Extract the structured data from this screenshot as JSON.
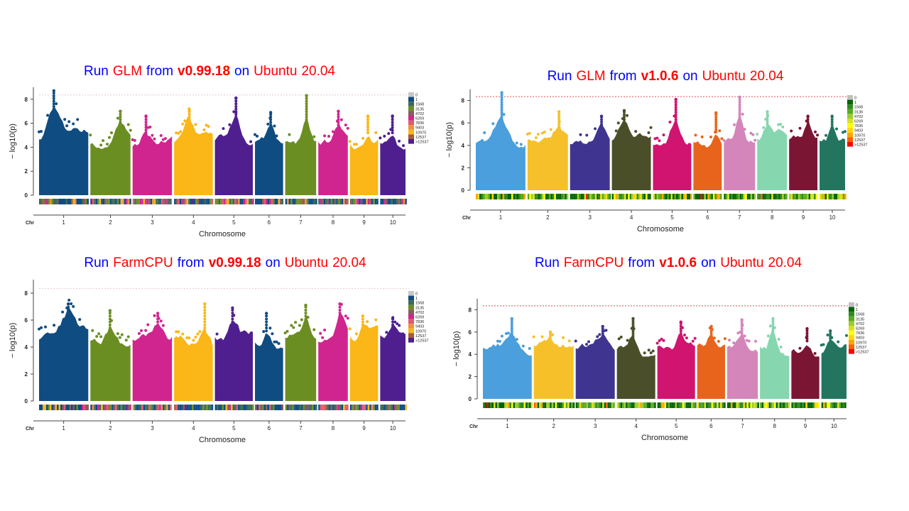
{
  "chart_data": [
    {
      "type": "scatter",
      "title": [
        {
          "text": "Run",
          "style": "blue"
        },
        {
          "text": "GLM",
          "style": "red"
        },
        {
          "text": "from",
          "style": "blue"
        },
        {
          "text": "v0.99.18",
          "style": "red bold"
        },
        {
          "text": "on",
          "style": "blue"
        },
        {
          "text": "Ubuntu",
          "style": "red"
        },
        {
          "text": "20.04",
          "style": "red"
        }
      ],
      "xlabel": "Chromosome",
      "ylabel": "− log10(p)",
      "x_axis_prefix": "Chr",
      "categories": [
        "1",
        "2",
        "3",
        "4",
        "5",
        "6",
        "7",
        "8",
        "9",
        "10"
      ],
      "yticks": [
        "0",
        "2",
        "4",
        "6",
        "8"
      ],
      "ylim": [
        0,
        9
      ],
      "threshold": 8.35,
      "peak_values": [
        8.7,
        7.0,
        6.6,
        7.1,
        8.1,
        6.9,
        8.3,
        7.0,
        6.6,
        6.6
      ],
      "series_colors": [
        "#0f4c81",
        "#6b8e23",
        "#d0258f",
        "#fbb617",
        "#4f1f8f",
        "#0f4c81",
        "#6b8e23",
        "#d0258f",
        "#fbb617",
        "#4f1f8f"
      ],
      "legend": {
        "labels": [
          "0",
          "1",
          "1568",
          "3135",
          "4702",
          "6269",
          "7836",
          "9403",
          "10970",
          "12537",
          ">12537"
        ],
        "colors": [
          "#c8c8c8",
          "#0f4c81",
          "#3d6a55",
          "#6b8e23",
          "#8b5a5e",
          "#d0258f",
          "#e35a70",
          "#f0903a",
          "#fbb617",
          "#a55a3a",
          "#4f1f8f"
        ]
      }
    },
    {
      "type": "scatter",
      "title": [
        {
          "text": "Run",
          "style": "blue"
        },
        {
          "text": "GLM",
          "style": "red"
        },
        {
          "text": "from",
          "style": "blue"
        },
        {
          "text": "v1.0.6",
          "style": "red bold"
        },
        {
          "text": "on",
          "style": "blue"
        },
        {
          "text": "Ubuntu",
          "style": "red"
        },
        {
          "text": "20.04",
          "style": "red"
        }
      ],
      "xlabel": "Chromosome",
      "ylabel": "− log10(p)",
      "x_axis_prefix": "Chr",
      "categories": [
        "1",
        "2",
        "3",
        "4",
        "5",
        "6",
        "7",
        "8",
        "9",
        "10"
      ],
      "yticks": [
        "0",
        "2",
        "4",
        "6",
        "8"
      ],
      "ylim": [
        0,
        9
      ],
      "threshold": 8.35,
      "peak_values": [
        8.7,
        7.0,
        6.6,
        7.1,
        8.1,
        6.9,
        8.3,
        7.0,
        6.6,
        6.6
      ],
      "series_colors": [
        "#4a9fdc",
        "#f5c02a",
        "#3f3590",
        "#4a4f2a",
        "#d01470",
        "#e8641c",
        "#d486bb",
        "#86d6b0",
        "#7a1633",
        "#247560"
      ],
      "legend": {
        "labels": [
          "0",
          "1",
          "1568",
          "3136",
          "4702",
          "6269",
          "7836",
          "9403",
          "10970",
          "12537",
          ">12537"
        ],
        "colors": [
          "#c0c0c0",
          "#006400",
          "#2e8b20",
          "#5aaa20",
          "#9acd32",
          "#d8e020",
          "#ffff00",
          "#ffd700",
          "#ffa500",
          "#ff6000",
          "#ff0000"
        ]
      }
    },
    {
      "type": "scatter",
      "title": [
        {
          "text": "Run",
          "style": "blue"
        },
        {
          "text": "FarmCPU",
          "style": "red"
        },
        {
          "text": "from",
          "style": "blue"
        },
        {
          "text": "v0.99.18",
          "style": "red bold"
        },
        {
          "text": "on",
          "style": "blue"
        },
        {
          "text": "Ubuntu",
          "style": "red"
        },
        {
          "text": "20.04",
          "style": "red"
        }
      ],
      "xlabel": "Chromosome",
      "ylabel": "− log10(p)",
      "x_axis_prefix": "Chr",
      "categories": [
        "1",
        "2",
        "3",
        "4",
        "5",
        "6",
        "7",
        "8",
        "9",
        "10"
      ],
      "yticks": [
        "0",
        "2",
        "4",
        "6",
        "8"
      ],
      "ylim": [
        0,
        9
      ],
      "threshold": 8.35,
      "peak_values": [
        7.2,
        6.7,
        6.5,
        7.2,
        6.9,
        6.5,
        7.1,
        7.2,
        6.3,
        6.1
      ],
      "series_colors": [
        "#0f4c81",
        "#6b8e23",
        "#d0258f",
        "#fbb617",
        "#4f1f8f",
        "#0f4c81",
        "#6b8e23",
        "#d0258f",
        "#fbb617",
        "#4f1f8f"
      ],
      "legend": {
        "labels": [
          "0",
          "1",
          "1568",
          "3135",
          "4702",
          "6269",
          "7836",
          "9403",
          "10970",
          "12537",
          ">12537"
        ],
        "colors": [
          "#c8c8c8",
          "#0f4c81",
          "#3d6a55",
          "#6b8e23",
          "#8b5a5e",
          "#d0258f",
          "#e35a70",
          "#f0903a",
          "#fbb617",
          "#a55a3a",
          "#4f1f8f"
        ]
      }
    },
    {
      "type": "scatter",
      "title": [
        {
          "text": "Run",
          "style": "blue"
        },
        {
          "text": "FarmCPU",
          "style": "red"
        },
        {
          "text": "from",
          "style": "blue"
        },
        {
          "text": "v1.0.6",
          "style": "red bold"
        },
        {
          "text": "on",
          "style": "blue"
        },
        {
          "text": "Ubuntu",
          "style": "red"
        },
        {
          "text": "20.04",
          "style": "red"
        }
      ],
      "xlabel": "Chromosome",
      "ylabel": "− log10(p)",
      "x_axis_prefix": "Chr",
      "categories": [
        "1",
        "2",
        "3",
        "4",
        "5",
        "6",
        "7",
        "8",
        "9",
        "10"
      ],
      "yticks": [
        "0",
        "2",
        "4",
        "6",
        "8"
      ],
      "ylim": [
        0,
        9
      ],
      "threshold": 8.35,
      "peak_values": [
        7.2,
        6.0,
        6.5,
        7.2,
        6.9,
        6.5,
        7.1,
        7.2,
        6.3,
        6.1
      ],
      "series_colors": [
        "#4a9fdc",
        "#f5c02a",
        "#3f3590",
        "#4a4f2a",
        "#d01470",
        "#e8641c",
        "#d486bb",
        "#86d6b0",
        "#7a1633",
        "#247560"
      ],
      "legend": {
        "labels": [
          "0",
          "1",
          "1568",
          "3135",
          "4702",
          "6269",
          "7836",
          "9403",
          "10970",
          "12537",
          ">12537"
        ],
        "colors": [
          "#c0c0c0",
          "#006400",
          "#2e8b20",
          "#5aaa20",
          "#9acd32",
          "#d8e020",
          "#ffff00",
          "#ffd700",
          "#ffa500",
          "#ff6000",
          "#ff0000"
        ]
      }
    }
  ]
}
